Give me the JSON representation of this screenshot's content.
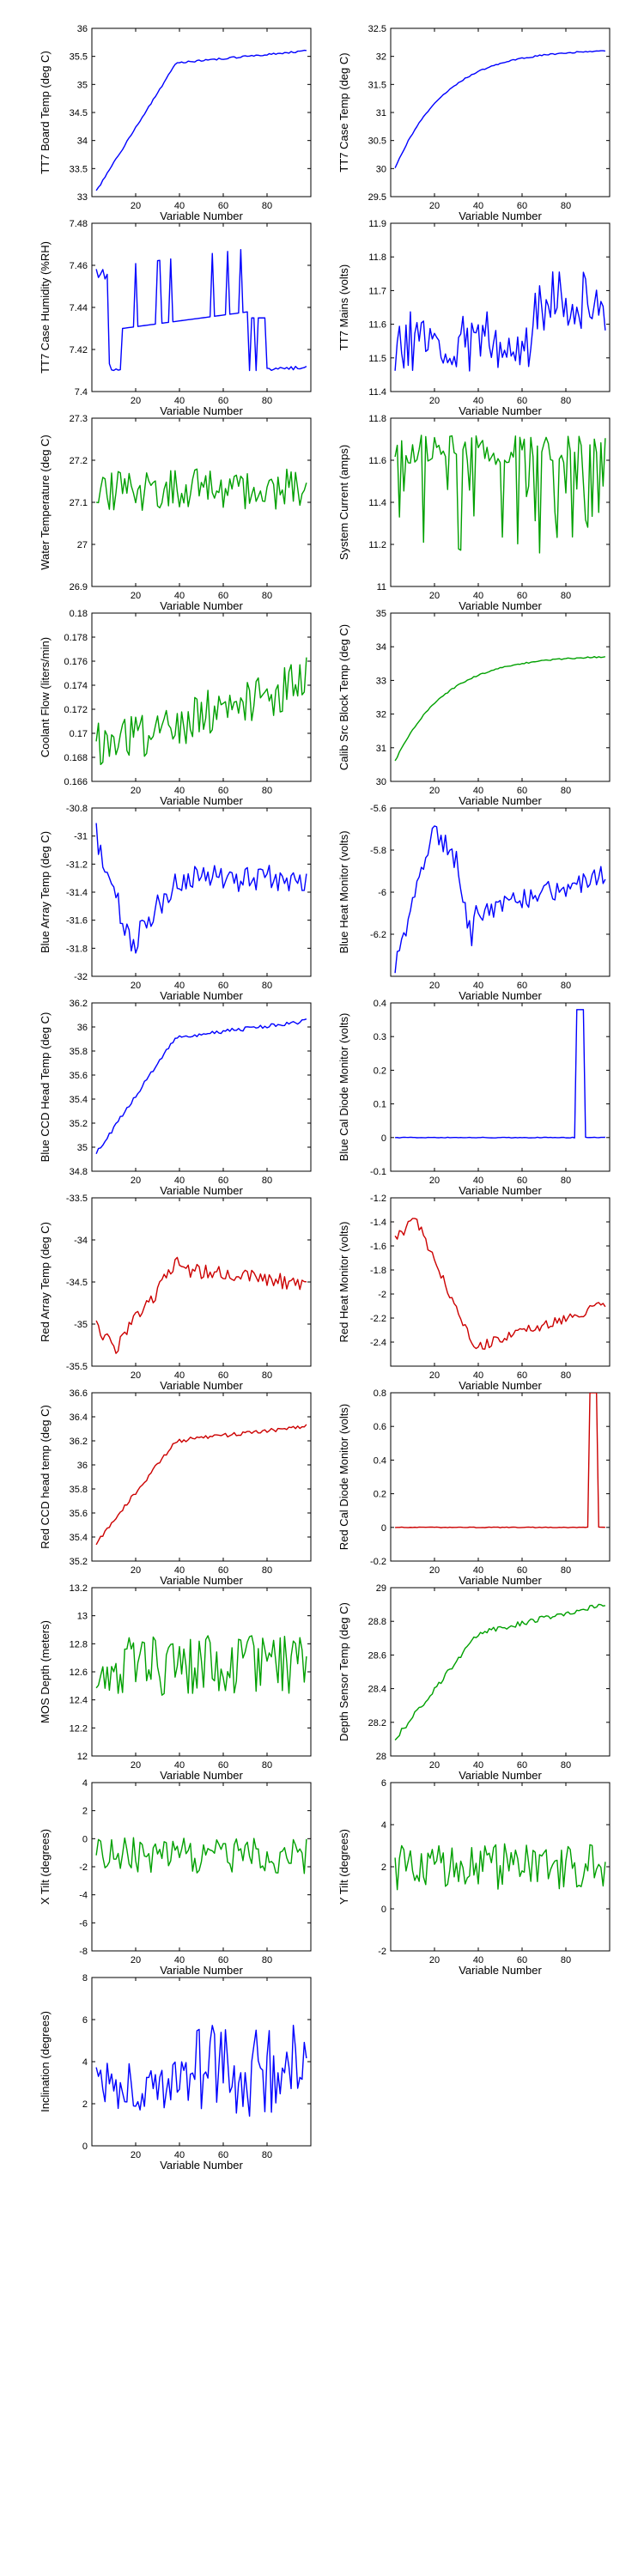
{
  "colors": {
    "blue": "#0000ff",
    "green": "#00a000",
    "red": "#cc0000"
  },
  "chart_data": [
    {
      "type": "line",
      "xlabel": "Variable Number",
      "ylabel": "TT7 Board Temp (deg C)",
      "xlim": [
        0,
        100
      ],
      "ylim": [
        33,
        36
      ],
      "xticks": [
        20,
        40,
        60,
        80
      ],
      "yticks": [
        33,
        33.5,
        34,
        34.5,
        35,
        35.5,
        36
      ],
      "yticklabels": [
        "33",
        "33.5",
        "34",
        "34.5",
        "35",
        "35.5",
        "36"
      ],
      "color": "#0000ff",
      "shape": "board",
      "y0": 33.1,
      "y1": 35.6
    },
    {
      "type": "line",
      "xlabel": "Variable Number",
      "ylabel": "TT7 Case Temp (deg C)",
      "xlim": [
        0,
        100
      ],
      "ylim": [
        29.5,
        32.5
      ],
      "xticks": [
        20,
        40,
        60,
        80
      ],
      "yticks": [
        29.5,
        30,
        30.5,
        31,
        31.5,
        32,
        32.5
      ],
      "yticklabels": [
        "29.5",
        "30",
        "30.5",
        "31",
        "31.5",
        "32",
        "32.5"
      ],
      "color": "#0000ff",
      "shape": "rise",
      "y0": 30.0,
      "y1": 32.1
    },
    {
      "type": "line",
      "xlabel": "Variable Number",
      "ylabel": "TT7 Case Humidity (%RH)",
      "xlim": [
        0,
        100
      ],
      "ylim": [
        7.4,
        7.48
      ],
      "xticks": [
        20,
        40,
        60,
        80
      ],
      "yticks": [
        7.4,
        7.42,
        7.44,
        7.46,
        7.48
      ],
      "yticklabels": [
        "7.4",
        "7.42",
        "7.44",
        "7.46",
        "7.48"
      ],
      "color": "#0000ff",
      "shape": "humidity",
      "y0": 7.41,
      "y1": 7.44
    },
    {
      "type": "line",
      "xlabel": "Variable Number",
      "ylabel": "TT7 Mains  (volts)",
      "xlim": [
        0,
        100
      ],
      "ylim": [
        11.4,
        11.9
      ],
      "xticks": [
        20,
        40,
        60,
        80
      ],
      "yticks": [
        11.4,
        11.5,
        11.6,
        11.7,
        11.8,
        11.9
      ],
      "yticklabels": [
        "11.4",
        "11.5",
        "11.6",
        "11.7",
        "11.8",
        "11.9"
      ],
      "color": "#0000ff",
      "shape": "mains",
      "y0": 11.55,
      "y1": 11.65
    },
    {
      "type": "line",
      "xlabel": "Variable Number",
      "ylabel": "Water Temperature (deg C)",
      "xlim": [
        0,
        100
      ],
      "ylim": [
        26.9,
        27.3
      ],
      "xticks": [
        20,
        40,
        60,
        80
      ],
      "yticks": [
        26.9,
        27,
        27.1,
        27.2,
        27.3
      ],
      "yticklabels": [
        "26.9",
        "27",
        "27.1",
        "27.2",
        "27.3"
      ],
      "color": "#00a000",
      "shape": "noise",
      "y0": 27.13,
      "y1": 0.05
    },
    {
      "type": "line",
      "xlabel": "Variable Number",
      "ylabel": "System Current (amps)",
      "xlim": [
        0,
        100
      ],
      "ylim": [
        11,
        11.8
      ],
      "xticks": [
        20,
        40,
        60,
        80
      ],
      "yticks": [
        11,
        11.2,
        11.4,
        11.6,
        11.8
      ],
      "yticklabels": [
        "11",
        "11.2",
        "11.4",
        "11.6",
        "11.8"
      ],
      "color": "#00a000",
      "shape": "current",
      "y0": 11.65,
      "y1": 11.15
    },
    {
      "type": "line",
      "xlabel": "Variable Number",
      "ylabel": "Coolant Flow (liters/min)",
      "xlim": [
        0,
        100
      ],
      "ylim": [
        0.166,
        0.18
      ],
      "xticks": [
        20,
        40,
        60,
        80
      ],
      "yticks": [
        0.166,
        0.168,
        0.17,
        0.172,
        0.174,
        0.176,
        0.178,
        0.18
      ],
      "yticklabels": [
        "0.166",
        "0.168",
        "0.17",
        "0.172",
        "0.174",
        "0.176",
        "0.178",
        "0.18"
      ],
      "color": "#00a000",
      "shape": "coolant",
      "y0": 0.169,
      "y1": 0.175
    },
    {
      "type": "line",
      "xlabel": "Variable Number",
      "ylabel": "Calib Src Block Temp (deg C)",
      "xlim": [
        0,
        100
      ],
      "ylim": [
        30,
        35
      ],
      "xticks": [
        20,
        40,
        60,
        80
      ],
      "yticks": [
        30,
        31,
        32,
        33,
        34,
        35
      ],
      "yticklabels": [
        "30",
        "31",
        "32",
        "33",
        "34",
        "35"
      ],
      "color": "#00a000",
      "shape": "rise",
      "y0": 30.6,
      "y1": 33.7
    },
    {
      "type": "line",
      "xlabel": "Variable Number",
      "ylabel": "Blue Array Temp (deg C)",
      "xlim": [
        0,
        100
      ],
      "ylim": [
        -32,
        -30.8
      ],
      "xticks": [
        20,
        40,
        60,
        80
      ],
      "yticks": [
        -32,
        -31.8,
        -31.6,
        -31.4,
        -31.2,
        -31,
        -30.8
      ],
      "yticklabels": [
        "-32",
        "-31.8",
        "-31.6",
        "-31.4",
        "-31.2",
        "-31",
        "-30.8"
      ],
      "color": "#0000ff",
      "shape": "arrayT",
      "y0": -31.0,
      "y1": -31.9
    },
    {
      "type": "line",
      "xlabel": "Variable Number",
      "ylabel": "Blue Heat Monitor (volts)",
      "xlim": [
        0,
        100
      ],
      "ylim": [
        -6.4,
        -5.6
      ],
      "xticks": [
        20,
        40,
        60,
        80
      ],
      "yticks": [
        -6.4,
        -6.2,
        -6,
        -5.8,
        -5.6
      ],
      "yticklabels": [
        "",
        "-6.2",
        "-6",
        "-5.8",
        "-5.6"
      ],
      "color": "#0000ff",
      "shape": "heat",
      "y0": -6.35,
      "y1": -5.65
    },
    {
      "type": "line",
      "xlabel": "Variable Number",
      "ylabel": "Blue CCD Head Temp (deg C)",
      "xlim": [
        0,
        100
      ],
      "ylim": [
        34.8,
        36.2
      ],
      "xticks": [
        20,
        40,
        60,
        80
      ],
      "yticks": [
        34.8,
        35,
        35.2,
        35.4,
        35.6,
        35.8,
        36,
        36.2
      ],
      "yticklabels": [
        "34.8",
        "35",
        "35.2",
        "35.4",
        "35.6",
        "35.8",
        "36",
        "36.2"
      ],
      "color": "#0000ff",
      "shape": "ccd",
      "y0": 34.95,
      "y1": 36.05
    },
    {
      "type": "line",
      "xlabel": "Variable Number",
      "ylabel": "Blue Cal Diode Monitor (volts)",
      "xlim": [
        0,
        100
      ],
      "ylim": [
        -0.1,
        0.4
      ],
      "xticks": [
        20,
        40,
        60,
        80
      ],
      "yticks": [
        -0.1,
        0,
        0.1,
        0.2,
        0.3,
        0.4
      ],
      "yticklabels": [
        "-0.1",
        "0",
        "0.1",
        "0.2",
        "0.3",
        "0.4"
      ],
      "color": "#0000ff",
      "shape": "spike",
      "y0": 0,
      "y1": 0.38,
      "spike_x": [
        85,
        88
      ]
    },
    {
      "type": "line",
      "xlabel": "Variable Number",
      "ylabel": "Red Array Temp (deg C)",
      "xlim": [
        0,
        100
      ],
      "ylim": [
        -35.5,
        -33.5
      ],
      "xticks": [
        20,
        40,
        60,
        80
      ],
      "yticks": [
        -35.5,
        -35,
        -34.5,
        -34,
        -33.5
      ],
      "yticklabels": [
        "-35.5",
        "-35",
        "-34.5",
        "-34",
        "-33.5"
      ],
      "color": "#cc0000",
      "shape": "redArray",
      "y0": -35.0,
      "y1": -34.4
    },
    {
      "type": "line",
      "xlabel": "Variable Number",
      "ylabel": "Red Heat Monitor (volts)",
      "xlim": [
        0,
        100
      ],
      "ylim": [
        -2.6,
        -1.2
      ],
      "xticks": [
        20,
        40,
        60,
        80
      ],
      "yticks": [
        -2.4,
        -2.2,
        -2,
        -1.8,
        -1.6,
        -1.4,
        -1.2
      ],
      "yticklabels": [
        "-2.4",
        "-2.2",
        "-2",
        "-1.8",
        "-1.6",
        "-1.4",
        "-1.2"
      ],
      "color": "#cc0000",
      "shape": "redHeat",
      "y0": -1.6,
      "y1": -2.05
    },
    {
      "type": "line",
      "xlabel": "Variable Number",
      "ylabel": "Red CCD head temp (deg C)",
      "xlim": [
        0,
        100
      ],
      "ylim": [
        35.2,
        36.6
      ],
      "xticks": [
        20,
        40,
        60,
        80
      ],
      "yticks": [
        35.2,
        35.4,
        35.6,
        35.8,
        36,
        36.2,
        36.4,
        36.6
      ],
      "yticklabels": [
        "35.2",
        "35.4",
        "35.6",
        "35.8",
        "36",
        "36.2",
        "36.4",
        "36.6"
      ],
      "color": "#cc0000",
      "shape": "ccd",
      "y0": 35.35,
      "y1": 36.32
    },
    {
      "type": "line",
      "xlabel": "Variable Number",
      "ylabel": "Red Cal Diode Monitor (volts)",
      "xlim": [
        0,
        100
      ],
      "ylim": [
        -0.2,
        0.8
      ],
      "xticks": [
        20,
        40,
        60,
        80
      ],
      "yticks": [
        -0.2,
        0,
        0.2,
        0.4,
        0.6,
        0.8
      ],
      "yticklabels": [
        "-0.2",
        "0",
        "0.2",
        "0.4",
        "0.6",
        "0.8"
      ],
      "color": "#cc0000",
      "shape": "spike",
      "y0": 0,
      "y1": 0.8,
      "spike_x": [
        91,
        94
      ]
    },
    {
      "type": "line",
      "xlabel": "Variable Number",
      "ylabel": "MOS Depth  (meters)",
      "xlim": [
        0,
        100
      ],
      "ylim": [
        12,
        13.2
      ],
      "xticks": [
        20,
        40,
        60,
        80
      ],
      "yticks": [
        12,
        12.2,
        12.4,
        12.6,
        12.8,
        13,
        13.2
      ],
      "yticklabels": [
        "12",
        "12.2",
        "12.4",
        "12.6",
        "12.8",
        "13",
        "13.2"
      ],
      "color": "#00a000",
      "shape": "noise",
      "y0": 12.65,
      "y1": 0.22
    },
    {
      "type": "line",
      "xlabel": "Variable Number",
      "ylabel": "Depth Sensor Temp (deg C)",
      "xlim": [
        0,
        100
      ],
      "ylim": [
        28,
        29
      ],
      "xticks": [
        20,
        40,
        60,
        80
      ],
      "yticks": [
        28,
        28.2,
        28.4,
        28.6,
        28.8,
        29
      ],
      "yticklabels": [
        "28",
        "28.2",
        "28.4",
        "28.6",
        "28.8",
        "29"
      ],
      "color": "#00a000",
      "shape": "depthT",
      "y0": 28.1,
      "y1": 28.9
    },
    {
      "type": "line",
      "xlabel": "Variable Number",
      "ylabel": "X Tilt  (degrees)",
      "xlim": [
        0,
        100
      ],
      "ylim": [
        -8,
        4
      ],
      "xticks": [
        20,
        40,
        60,
        80
      ],
      "yticks": [
        -8,
        -6,
        -4,
        -2,
        0,
        2,
        4
      ],
      "yticklabels": [
        "-8",
        "-6",
        "-4",
        "-2",
        "0",
        "2",
        "4"
      ],
      "color": "#00a000",
      "shape": "noise",
      "y0": -1.2,
      "y1": 1.3
    },
    {
      "type": "line",
      "xlabel": "Variable Number",
      "ylabel": "Y Tilt  (degrees)",
      "xlim": [
        0,
        100
      ],
      "ylim": [
        -2,
        6
      ],
      "xticks": [
        20,
        40,
        60,
        80
      ],
      "yticks": [
        -2,
        0,
        2,
        4,
        6
      ],
      "yticklabels": [
        "-2",
        "0",
        "2",
        "4",
        "6"
      ],
      "color": "#00a000",
      "shape": "noise",
      "y0": 2.0,
      "y1": 1.1
    },
    {
      "type": "line",
      "xlabel": "Variable Number",
      "ylabel": "Inclination  (degrees)",
      "xlim": [
        0,
        100
      ],
      "ylim": [
        0,
        8
      ],
      "xticks": [
        20,
        40,
        60,
        80
      ],
      "yticks": [
        0,
        2,
        4,
        6,
        8
      ],
      "yticklabels": [
        "0",
        "2",
        "4",
        "6",
        "8"
      ],
      "color": "#0000ff",
      "shape": "incl",
      "y0": 2.8,
      "y1": 1.3
    }
  ]
}
